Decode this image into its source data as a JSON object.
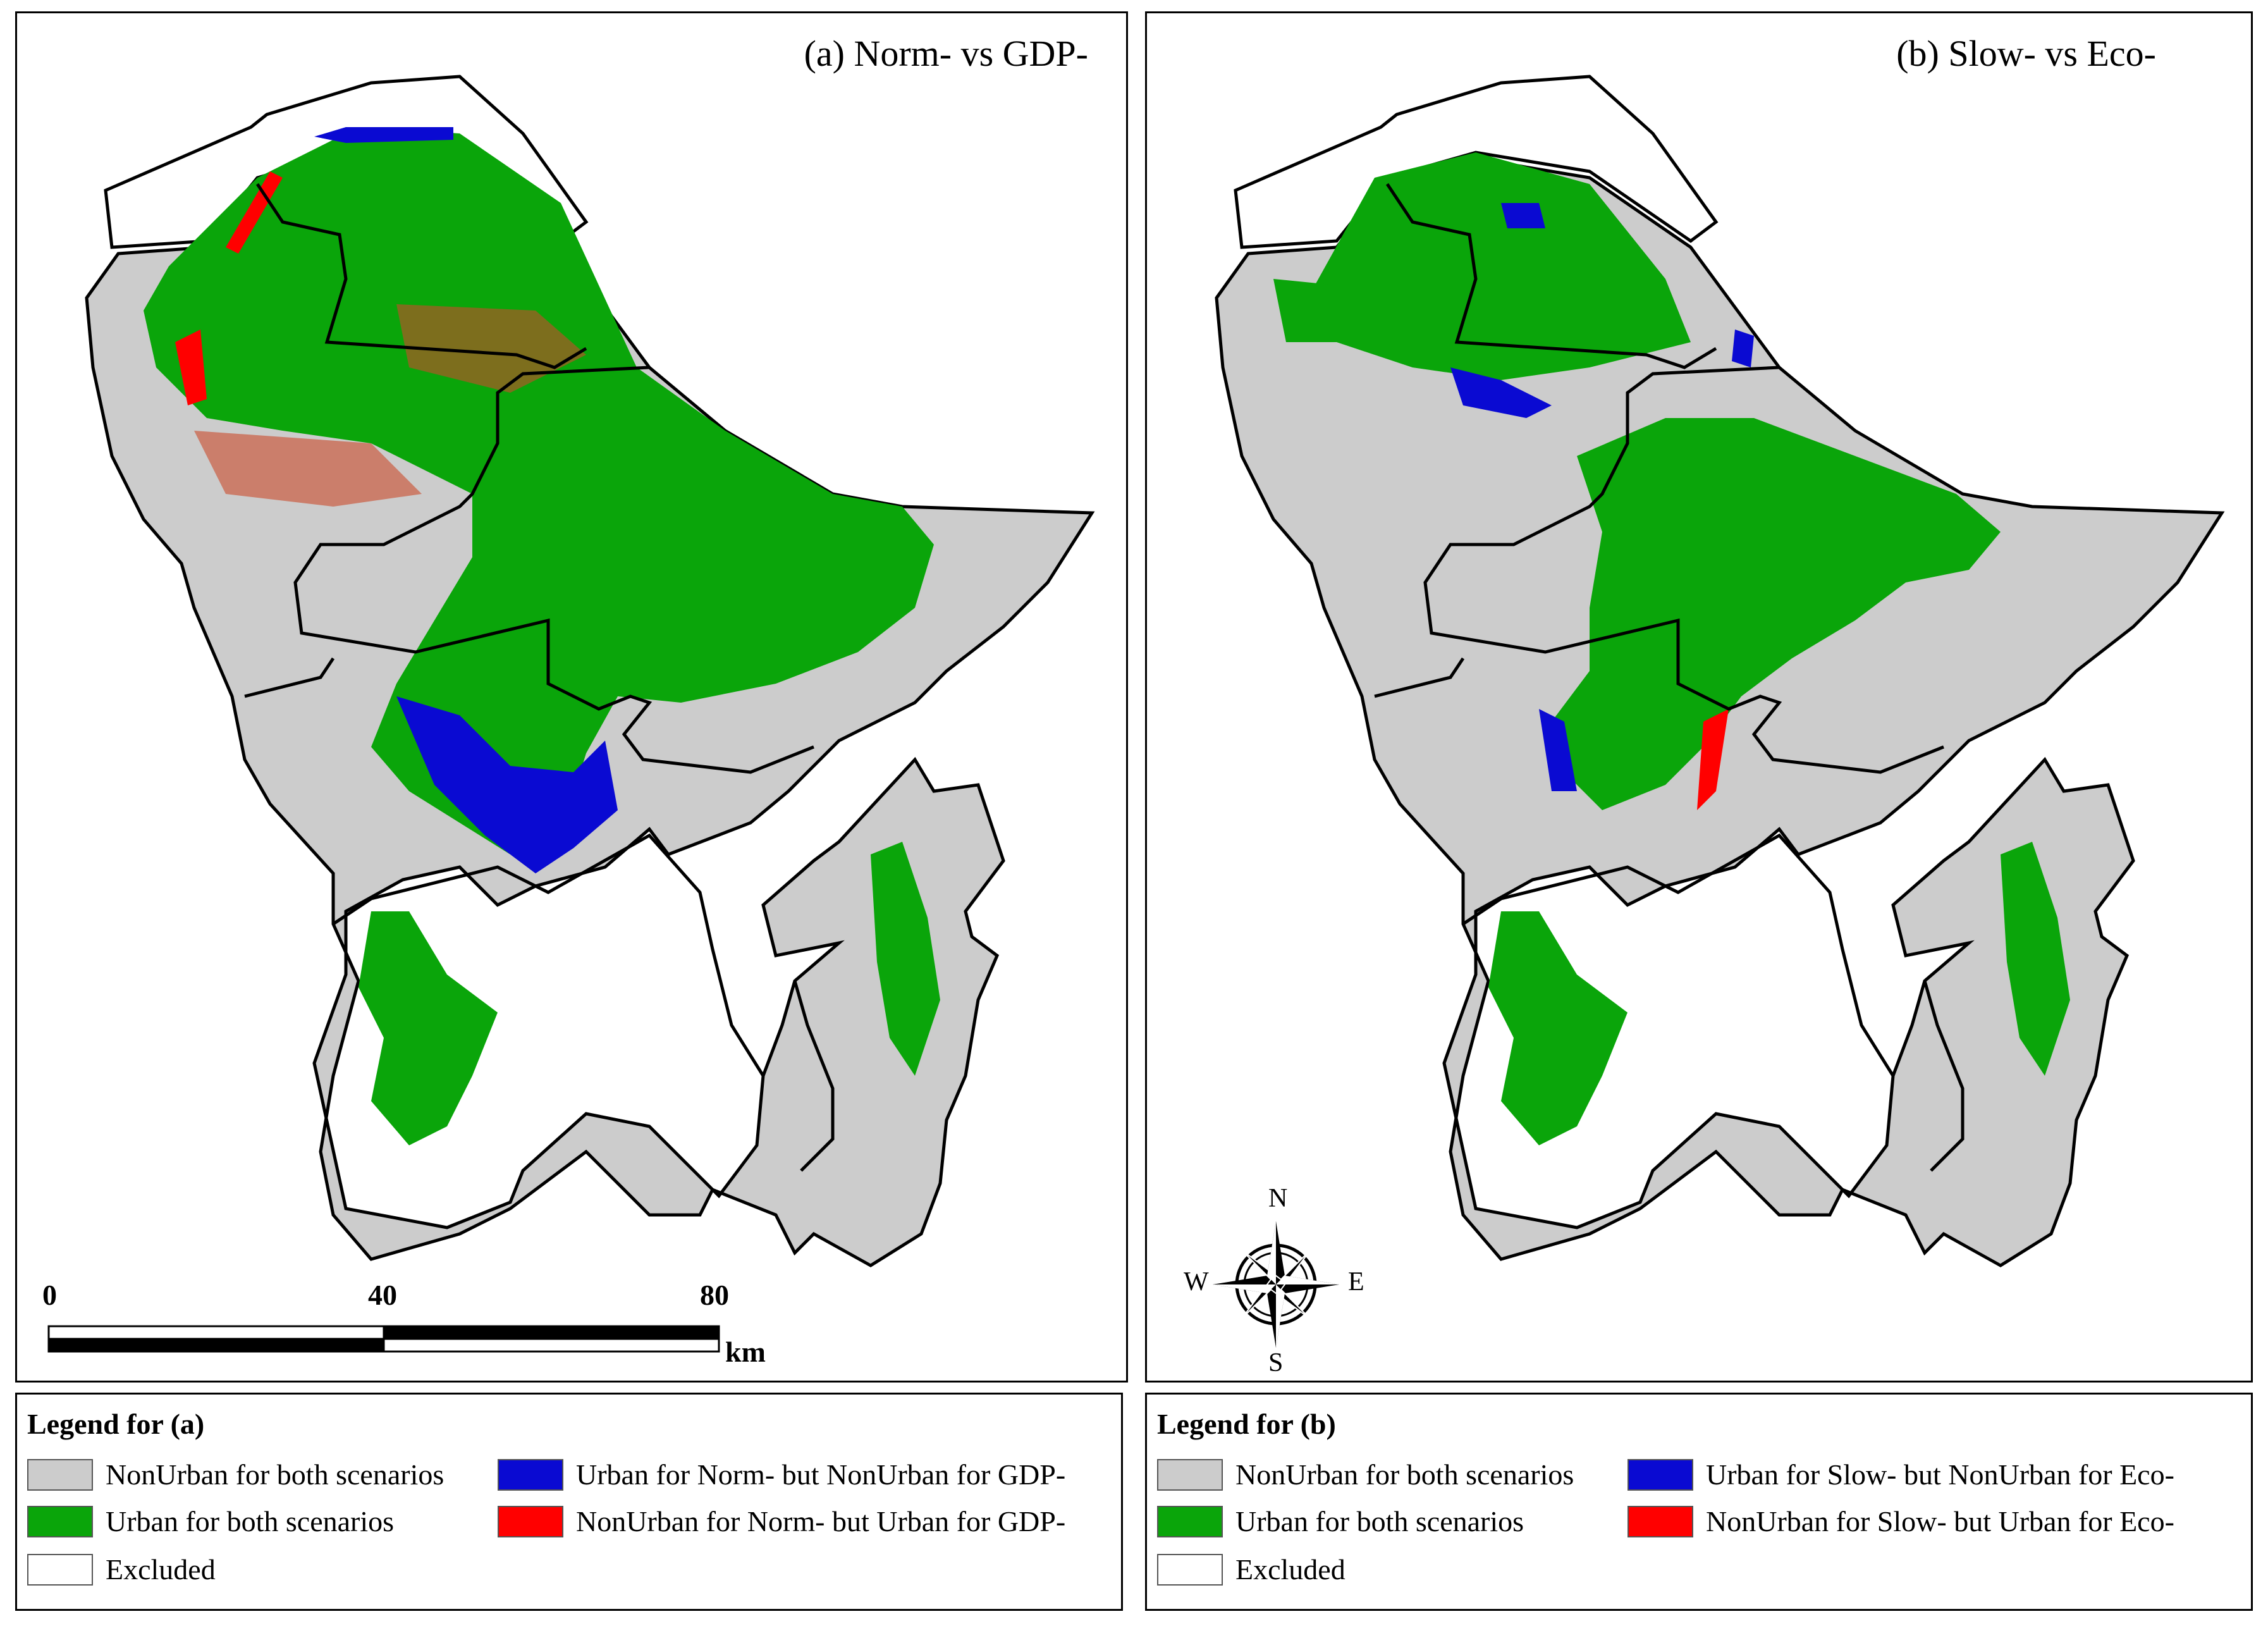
{
  "panel_a": {
    "title": "(a) Norm- vs GDP-"
  },
  "panel_b": {
    "title": "(b) Slow- vs Eco-"
  },
  "scale_bar": {
    "ticks": [
      "0",
      "40",
      "80"
    ],
    "unit": "km"
  },
  "compass": {
    "n": "N",
    "s": "S",
    "e": "E",
    "w": "W"
  },
  "legend_a": {
    "title": "Legend for (a)",
    "items": [
      {
        "label": "NonUrban for both scenarios",
        "color": "#cccccc"
      },
      {
        "label": "Urban for Norm- but NonUrban for GDP-",
        "color": "#0a0ad2"
      },
      {
        "label": "Urban for both scenarios",
        "color": "#0aa50a"
      },
      {
        "label": "NonUrban for Norm- but Urban for GDP-",
        "color": "#ff0000"
      },
      {
        "label": "Excluded",
        "color": "#ffffff"
      }
    ]
  },
  "legend_b": {
    "title": "Legend for (b)",
    "items": [
      {
        "label": "NonUrban for both scenarios",
        "color": "#cccccc"
      },
      {
        "label": "Urban for Slow- but NonUrban for Eco-",
        "color": "#0a0ad2"
      },
      {
        "label": "Urban for both scenarios",
        "color": "#0aa50a"
      },
      {
        "label": "NonUrban for Slow- but Urban for Eco-",
        "color": "#ff0000"
      },
      {
        "label": "Excluded",
        "color": "#ffffff"
      }
    ]
  }
}
